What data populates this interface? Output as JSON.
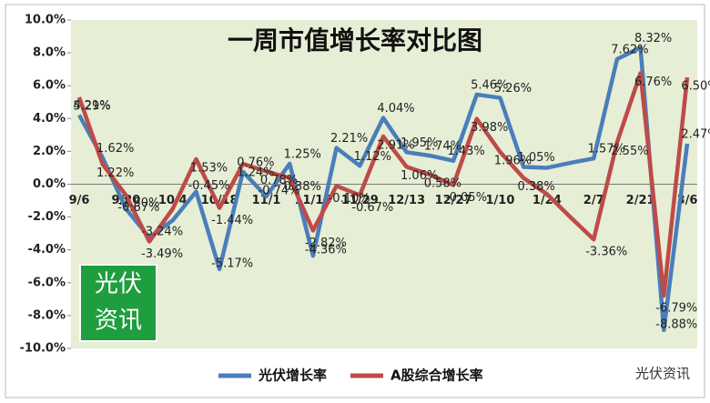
{
  "chart_data": {
    "type": "line",
    "title": "一周市值增长率对比图",
    "categories": [
      "9/6",
      null,
      "9/20",
      null,
      "10/4",
      null,
      "10/18",
      null,
      "11/1",
      null,
      "11/15",
      null,
      "11/29",
      null,
      "12/13",
      null,
      "12/27",
      null,
      "1/10",
      null,
      "1/24",
      null,
      "2/7",
      null,
      "2/21",
      null,
      "3/6"
    ],
    "series": [
      {
        "name": "光伏增长率",
        "color": "#4a7ebb",
        "values": [
          4.21,
          1.62,
          -1.5,
          -3.24,
          -2.2,
          -0.45,
          -5.17,
          0.76,
          -0.74,
          1.25,
          -4.36,
          2.21,
          1.12,
          4.04,
          1.95,
          1.74,
          1.43,
          5.46,
          5.26,
          1.05,
          1.0,
          1.3,
          1.57,
          7.62,
          8.32,
          -8.88,
          2.47
        ],
        "value_labels": [
          "4.21%",
          "1.62%",
          "-1.50%",
          "-3.24%",
          null,
          "-0.45%",
          "-5.17%",
          "0.76%",
          "-0.74%",
          "1.25%",
          "-4.36%",
          "2.21%",
          "1.12%",
          "4.04%",
          "1.95%",
          "1.74%",
          "1.43%",
          "5.46%",
          "5.26%",
          "1.05%",
          null,
          null,
          "1.57%",
          "7.62%",
          "8.32%",
          "-8.88%",
          "2.47%"
        ]
      },
      {
        "name": "A股综合增长率",
        "color": "#be4b48",
        "values": [
          5.29,
          1.22,
          -0.67,
          -3.49,
          -1.5,
          1.53,
          -1.44,
          1.24,
          0.78,
          0.38,
          -2.82,
          -0.1,
          -0.67,
          2.91,
          1.06,
          0.58,
          -0.05,
          3.98,
          1.96,
          0.38,
          -0.6,
          -2.0,
          -3.36,
          2.55,
          6.76,
          -6.79,
          6.5
        ],
        "value_labels": [
          "5.29%",
          "1.22%",
          "-0.67%",
          "-3.49%",
          null,
          "1.53%",
          "-1.44%",
          "1.24%",
          "0.78%",
          "0.38%",
          "-2.82%",
          "-0.10%",
          "-0.67%",
          "2.91%",
          "1.06%",
          "0.58%",
          "-0.05%",
          "3.98%",
          "1.96%",
          "0.38%",
          null,
          null,
          "-3.36%",
          "2.55%",
          "6.76%",
          "-6.79%",
          "6.50%"
        ]
      }
    ],
    "ylim": [
      -10,
      10
    ],
    "yticks": [
      {
        "value": -10,
        "label": "-10.0%"
      },
      {
        "value": -8,
        "label": "-8.0%"
      },
      {
        "value": -6,
        "label": "-6.0%"
      },
      {
        "value": -4,
        "label": "-4.0%"
      },
      {
        "value": -2,
        "label": "-2.0%"
      },
      {
        "value": 0,
        "label": "0.0%"
      },
      {
        "value": 2,
        "label": "2.0%"
      },
      {
        "value": 4,
        "label": "4.0%"
      },
      {
        "value": 6,
        "label": "6.0%"
      },
      {
        "value": 8,
        "label": "8.0%"
      },
      {
        "value": 10,
        "label": "10.0%"
      }
    ],
    "legend": "bottom"
  },
  "logo": {
    "line1": "光伏",
    "line2": "资讯"
  },
  "watermark": "光伏资讯"
}
